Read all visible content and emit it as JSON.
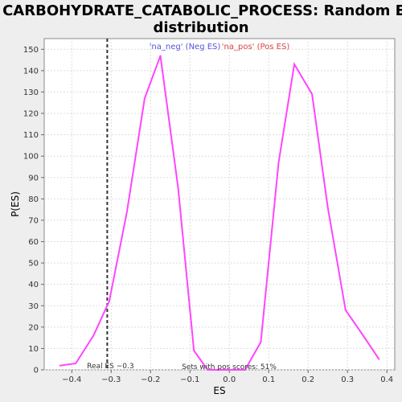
{
  "chart_data": {
    "type": "line",
    "title_line1": "CARBOHYDRATE_CATABOLIC_PROCESS: Random ES",
    "title_line2": "distribution",
    "xlabel": "ES",
    "ylabel": "P(ES)",
    "xlim": [
      -0.47,
      0.42
    ],
    "ylim": [
      0,
      155
    ],
    "xticks": [
      -0.4,
      -0.3,
      -0.2,
      -0.1,
      0.0,
      0.1,
      0.2,
      0.3,
      0.4
    ],
    "xtick_labels": [
      "−0.4",
      "−0.3",
      "−0.2",
      "−0.1",
      "0.0",
      "0.1",
      "0.2",
      "0.3",
      "0.4"
    ],
    "yticks": [
      0,
      10,
      20,
      30,
      40,
      50,
      60,
      70,
      80,
      90,
      100,
      110,
      120,
      130,
      140,
      150
    ],
    "grid": true,
    "line_color": "#ff44ff",
    "series": [
      {
        "color": "#ff44ff",
        "x": [
          -0.43,
          -0.39,
          -0.345,
          -0.305,
          -0.26,
          -0.215,
          -0.175,
          -0.13,
          -0.09,
          -0.055,
          -0.02,
          0.0,
          0.04,
          0.08,
          0.125,
          0.165,
          0.21,
          0.25,
          0.295,
          0.34,
          0.38
        ],
        "y": [
          2,
          3,
          16,
          32,
          74,
          127,
          147,
          85,
          9,
          0,
          0,
          0,
          0,
          13,
          97,
          143,
          129,
          76,
          28,
          16,
          5
        ]
      }
    ],
    "legend": [
      {
        "label": "'na_neg' (Neg ES)",
        "color": "#5555dd"
      },
      {
        "label": "'na_pos' (Pos ES)",
        "color": "#dd4444"
      }
    ],
    "legend_placement": "top-center",
    "real_es": {
      "x": -0.31,
      "label": "Real ES −0.3"
    },
    "annotation": "Sets with pos scores: 51%"
  }
}
